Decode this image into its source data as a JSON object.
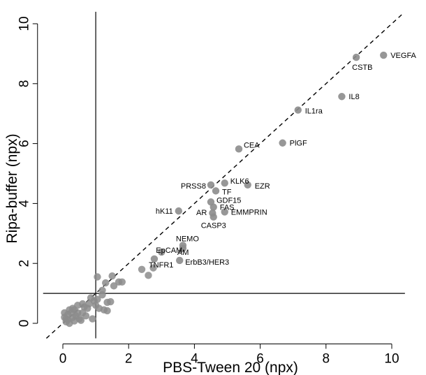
{
  "chart_data": {
    "type": "scatter",
    "xlabel": "PBS-Tween 20 (npx)",
    "ylabel": "Ripa-buffer (npx)",
    "xlim": [
      -0.6,
      10.4
    ],
    "ylim": [
      -0.5,
      10.4
    ],
    "xticks": [
      0,
      2,
      4,
      6,
      8,
      10
    ],
    "yticks": [
      0,
      2,
      4,
      6,
      8,
      10
    ],
    "grid": false,
    "reference_lines": {
      "vertical_x": 1,
      "horizontal_y": 1,
      "identity_dashed": true
    },
    "point_color": "#8c8c8c",
    "labeled_points": [
      {
        "label": "VEGFA",
        "x": 9.75,
        "y": 8.95
      },
      {
        "label": "CSTB",
        "x": 8.92,
        "y": 8.88
      },
      {
        "label": "IL8",
        "x": 8.48,
        "y": 7.57
      },
      {
        "label": "IL1ra",
        "x": 7.15,
        "y": 7.12
      },
      {
        "label": "PlGF",
        "x": 6.68,
        "y": 6.02
      },
      {
        "label": "CEA",
        "x": 5.35,
        "y": 5.82
      },
      {
        "label": "KLK6",
        "x": 4.92,
        "y": 4.68
      },
      {
        "label": "EZR",
        "x": 5.62,
        "y": 4.62
      },
      {
        "label": "PRSS8",
        "x": 4.5,
        "y": 4.62
      },
      {
        "label": "TF",
        "x": 4.65,
        "y": 4.42
      },
      {
        "label": "GDF15",
        "x": 4.5,
        "y": 4.05
      },
      {
        "label": "FAS",
        "x": 4.58,
        "y": 3.88
      },
      {
        "label": "hK11",
        "x": 3.52,
        "y": 3.75
      },
      {
        "label": "EMMPRIN",
        "x": 4.92,
        "y": 3.72
      },
      {
        "label": "AR",
        "x": 4.55,
        "y": 3.68
      },
      {
        "label": "CASP3",
        "x": 4.58,
        "y": 3.55
      },
      {
        "label": "NEMO",
        "x": 3.65,
        "y": 2.6
      },
      {
        "label": "EpCAM",
        "x": 3.0,
        "y": 2.38
      },
      {
        "label": "AM",
        "x": 3.65,
        "y": 2.5
      },
      {
        "label": "TNFR1",
        "x": 2.78,
        "y": 2.15
      },
      {
        "label": "ErbB3/HER3",
        "x": 3.55,
        "y": 2.1
      }
    ],
    "other_points": [
      [
        2.4,
        1.8
      ],
      [
        2.75,
        1.85
      ],
      [
        2.6,
        1.6
      ],
      [
        1.05,
        1.55
      ],
      [
        1.5,
        1.58
      ],
      [
        1.7,
        1.38
      ],
      [
        1.8,
        1.38
      ],
      [
        1.55,
        1.25
      ],
      [
        1.3,
        1.35
      ],
      [
        1.2,
        1.1
      ],
      [
        1.35,
        0.7
      ],
      [
        1.45,
        0.72
      ],
      [
        1.25,
        0.45
      ],
      [
        1.35,
        0.42
      ],
      [
        1.0,
        0.6
      ],
      [
        1.05,
        0.8
      ],
      [
        0.9,
        0.15
      ],
      [
        1.1,
        0.5
      ],
      [
        1.2,
        0.95
      ],
      [
        0.95,
        0.75
      ],
      [
        0.85,
        0.85
      ],
      [
        0.05,
        0.2
      ],
      [
        0.1,
        0.15
      ],
      [
        0.15,
        0.3
      ],
      [
        0.2,
        0.0
      ],
      [
        0.3,
        0.2
      ],
      [
        0.35,
        0.45
      ],
      [
        0.5,
        0.15
      ],
      [
        0.45,
        0.6
      ],
      [
        0.6,
        0.35
      ],
      [
        0.65,
        0.55
      ],
      [
        0.7,
        0.25
      ],
      [
        0.75,
        0.5
      ],
      [
        0.25,
        0.35
      ],
      [
        0.4,
        0.25
      ],
      [
        0.55,
        0.1
      ],
      [
        0.1,
        0.05
      ],
      [
        0.05,
        0.35
      ],
      [
        0.3,
        0.5
      ],
      [
        0.8,
        0.65
      ],
      [
        0.6,
        0.65
      ],
      [
        0.2,
        0.45
      ],
      [
        0.45,
        0.35
      ],
      [
        0.15,
        0.12
      ],
      [
        0.35,
        0.08
      ]
    ]
  }
}
